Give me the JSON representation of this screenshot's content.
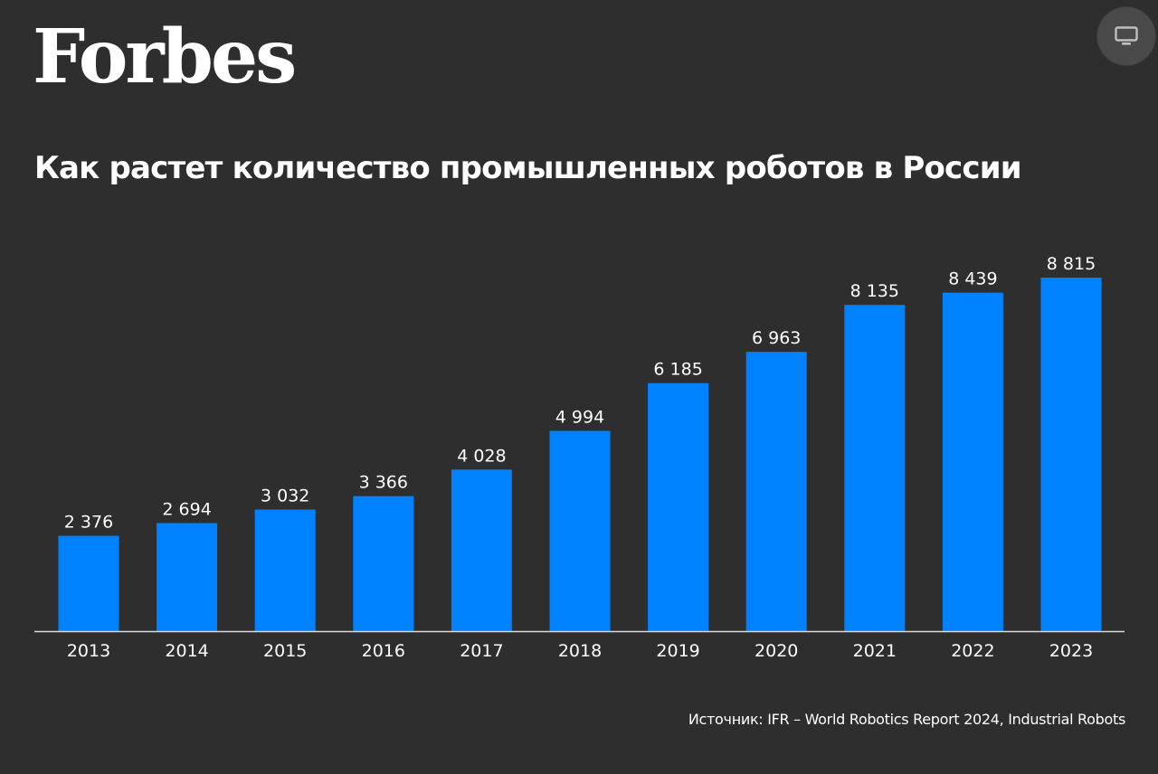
{
  "header": {
    "logo_text": "Forbes",
    "screen_button_icon": "monitor-icon"
  },
  "title": "Как растет количество промышленных роботов в России",
  "source": "Источник: IFR – World Robotics Report 2024, Industrial Robots",
  "colors": {
    "background": "#2e2e2e",
    "bar": "#0081ff",
    "text": "#ffffff",
    "axis": "#d9d9d9"
  },
  "chart_data": {
    "type": "bar",
    "title": "Как растет количество промышленных роботов в России",
    "xlabel": "",
    "ylabel": "",
    "categories": [
      "2013",
      "2014",
      "2015",
      "2016",
      "2017",
      "2018",
      "2019",
      "2020",
      "2021",
      "2022",
      "2023"
    ],
    "values": [
      2376,
      2694,
      3032,
      3366,
      4028,
      4994,
      6185,
      6963,
      8135,
      8439,
      8815
    ],
    "value_labels": [
      "2 376",
      "2 694",
      "3 032",
      "3 366",
      "4 028",
      "4 994",
      "6 185",
      "6 963",
      "8 135",
      "8 439",
      "8 815"
    ],
    "ylim": [
      0,
      8815
    ],
    "grid": false,
    "legend": "none"
  }
}
